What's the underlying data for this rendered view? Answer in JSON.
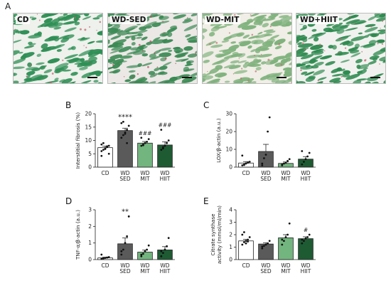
{
  "figure": {
    "panel_a_label": "A",
    "micrographs": [
      {
        "label": "CD",
        "fill": "#2f8f55",
        "bg": "#eef1ec",
        "stain": "#c25d66"
      },
      {
        "label": "WD-SED",
        "fill": "#3b8a54",
        "bg": "#ece8e6",
        "stain": "#b3485a"
      },
      {
        "label": "WD-MIT",
        "fill": "#7fb27d",
        "bg": "#f0eee6",
        "stain": "#c07070"
      },
      {
        "label": "WD+HIIT",
        "fill": "#2e8a4f",
        "bg": "#f1f2ef",
        "stain": "#c46870"
      }
    ]
  },
  "colors": {
    "CD": "#ffffff",
    "WD SED": "#5a5a5a",
    "WD MIT": "#72b57e",
    "WD HIIT": "#1e5b33"
  },
  "chart_data": [
    {
      "panel": "B",
      "type": "bar",
      "ylabel": "Interstitial fibrosis (%)",
      "ylim": [
        0,
        20
      ],
      "yticks": [
        0,
        5,
        10,
        15,
        20
      ],
      "categories": [
        [
          "CD"
        ],
        [
          "WD",
          "SED"
        ],
        [
          "WD",
          "MIT"
        ],
        [
          "WD",
          "HIIT"
        ]
      ],
      "values": [
        7.3,
        13.7,
        9.0,
        8.3
      ],
      "errors": [
        0.6,
        0.9,
        0.6,
        1.2
      ],
      "annotations": [
        "",
        "****",
        "###",
        "###"
      ],
      "points": [
        [
          6.0,
          6.5,
          7.0,
          7.5,
          8.0,
          8.5,
          9.0,
          6.8,
          7.8,
          5.0,
          4.2
        ],
        [
          11.0,
          12.0,
          13.0,
          14.0,
          15.5,
          16.5,
          17.0,
          12.5,
          9.0
        ],
        [
          8.0,
          8.5,
          9.0,
          9.5,
          10.5,
          11.0,
          8.2
        ],
        [
          6.5,
          7.0,
          8.0,
          9.0,
          10.0,
          14.0,
          7.5
        ]
      ]
    },
    {
      "panel": "C",
      "type": "bar",
      "ylabel": "LOX/β-actin (a.u.)",
      "ylim": [
        0,
        30
      ],
      "yticks": [
        0,
        10,
        20,
        30
      ],
      "categories": [
        [
          "CD"
        ],
        [
          "WD",
          "SED"
        ],
        [
          "WD",
          "MIT"
        ],
        [
          "WD",
          "HIIT"
        ]
      ],
      "values": [
        2.3,
        8.8,
        2.1,
        4.5
      ],
      "errors": [
        0.8,
        4.0,
        0.8,
        1.4
      ],
      "annotations": [
        "",
        "",
        "",
        ""
      ],
      "points": [
        [
          1.0,
          1.5,
          2.0,
          2.5,
          3.0,
          6.5,
          1.2
        ],
        [
          2.0,
          5.0,
          7.0,
          20.0,
          28.0,
          1.0
        ],
        [
          1.0,
          2.0,
          2.5,
          3.5,
          4.5,
          1.5
        ],
        [
          1.5,
          3.0,
          4.5,
          6.0,
          8.0,
          9.0
        ]
      ]
    },
    {
      "panel": "D",
      "type": "bar",
      "ylabel": "TNF-α/β-actin (a.u.)",
      "ylim": [
        0,
        3
      ],
      "yticks": [
        0,
        1,
        2,
        3
      ],
      "categories": [
        [
          "CD"
        ],
        [
          "WD",
          "SED"
        ],
        [
          "WD",
          "MIT"
        ],
        [
          "WD",
          "HIIT"
        ]
      ],
      "values": [
        0.1,
        0.95,
        0.45,
        0.58
      ],
      "errors": [
        0.04,
        0.35,
        0.12,
        0.2
      ],
      "annotations": [
        "",
        "**",
        "",
        ""
      ],
      "points": [
        [
          0.05,
          0.08,
          0.1,
          0.12,
          0.15,
          0.3,
          0.07
        ],
        [
          0.3,
          0.6,
          1.0,
          1.4,
          2.6,
          0.5
        ],
        [
          0.2,
          0.35,
          0.5,
          0.6,
          0.85,
          0.3
        ],
        [
          0.2,
          0.4,
          0.6,
          0.8,
          1.3,
          0.5
        ]
      ]
    },
    {
      "panel": "E",
      "type": "bar",
      "ylabel": "Citrate synthase activity (mmol/ml/min)",
      "ylim": [
        0,
        4
      ],
      "yticks": [
        0,
        1,
        2,
        3,
        4
      ],
      "categories": [
        [
          "CD"
        ],
        [
          "WD",
          "SED"
        ],
        [
          "WD",
          "MIT"
        ],
        [
          "WD",
          "HIIT"
        ]
      ],
      "values": [
        1.5,
        1.25,
        1.75,
        1.68
      ],
      "errors": [
        0.12,
        0.1,
        0.25,
        0.15
      ],
      "annotations": [
        "",
        "",
        "",
        "#"
      ],
      "points": [
        [
          1.2,
          1.4,
          1.5,
          1.6,
          1.8,
          2.0,
          2.2,
          1.3,
          1.45
        ],
        [
          0.9,
          1.1,
          1.2,
          1.3,
          1.5,
          1.05
        ],
        [
          1.2,
          1.5,
          1.8,
          2.0,
          2.9,
          1.6
        ],
        [
          1.3,
          1.5,
          1.7,
          1.8,
          2.0,
          1.6
        ]
      ]
    }
  ]
}
